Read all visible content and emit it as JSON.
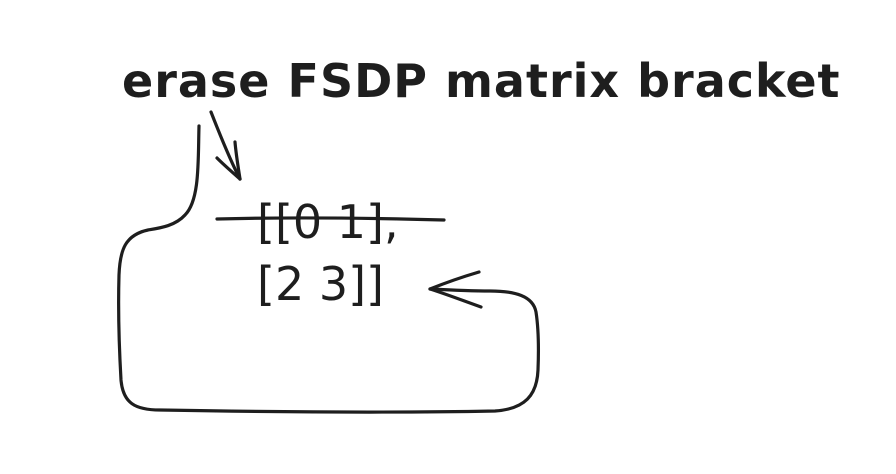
{
  "annotation": {
    "title": "erase FSDP matrix bracket"
  },
  "matrix": {
    "row1": "[[0 1],",
    "row2": "[2 3]]"
  },
  "colors": {
    "ink": "#1e1e1e",
    "background": "#ffffff"
  }
}
